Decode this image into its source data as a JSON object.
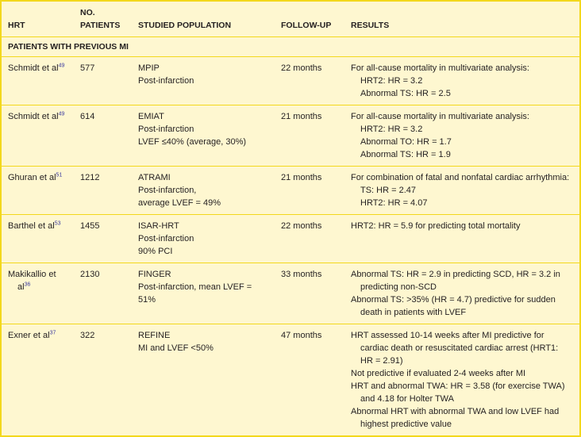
{
  "headers": {
    "hrt": "HRT",
    "patients_line1": "NO.",
    "patients_line2": "PATIENTS",
    "population": "STUDIED POPULATION",
    "followup": "FOLLOW-UP",
    "results": "RESULTS"
  },
  "section": "PATIENTS WITH PREVIOUS MI",
  "rows": [
    {
      "author": "Schmidt et al",
      "ref": "49",
      "patients": "577",
      "population": [
        "MPIP",
        "Post-infarction"
      ],
      "followup": "22 months",
      "results": [
        {
          "t": "For all-cause mortality in multivariate analysis:",
          "indent": false
        },
        {
          "t": "HRT2: HR = 3.2",
          "indent": true
        },
        {
          "t": "Abnormal TS: HR = 2.5",
          "indent": true
        }
      ]
    },
    {
      "author": "Schmidt et al",
      "ref": "49",
      "patients": "614",
      "population": [
        "EMIAT",
        "Post-infarction",
        "LVEF ≤40% (average, 30%)"
      ],
      "followup": "21 months",
      "results": [
        {
          "t": "For all-cause mortality in multivariate analysis:",
          "indent": false
        },
        {
          "t": "HRT2: HR = 3.2",
          "indent": true
        },
        {
          "t": "Abnormal TO: HR = 1.7",
          "indent": true
        },
        {
          "t": "Abnormal TS: HR = 1.9",
          "indent": true
        }
      ]
    },
    {
      "author": "Ghuran et al",
      "ref": "51",
      "patients": "1212",
      "population": [
        "ATRAMI",
        "Post-infarction,",
        "average LVEF = 49%"
      ],
      "followup": "21 months",
      "results": [
        {
          "t": "For combination of fatal and nonfatal cardiac arrhythmia:",
          "indent": false
        },
        {
          "t": "TS: HR = 2.47",
          "indent": true
        },
        {
          "t": "HRT2: HR = 4.07",
          "indent": true
        }
      ]
    },
    {
      "author": "Barthel et al",
      "ref": "53",
      "patients": "1455",
      "population": [
        "ISAR-HRT",
        "Post-infarction",
        "90% PCI"
      ],
      "followup": "22 months",
      "results": [
        {
          "t": "HRT2: HR = 5.9 for predicting total mortality",
          "indent": false
        }
      ]
    },
    {
      "author": "Makikallio et al",
      "ref": "36",
      "patients": "2130",
      "population": [
        "FINGER",
        "Post-infarction, mean LVEF = 51%"
      ],
      "followup": "33 months",
      "results": [
        {
          "t": "Abnormal TS: HR = 2.9 in predicting SCD, HR = 3.2 in predicting non-SCD",
          "indent": false
        },
        {
          "t": "Abnormal TS: >35% (HR = 4.7) predictive for sudden death in patients with LVEF",
          "indent": false
        }
      ]
    },
    {
      "author": "Exner et al",
      "ref": "37",
      "patients": "322",
      "population": [
        "REFINE",
        "MI and LVEF <50%"
      ],
      "followup": "47 months",
      "results": [
        {
          "t": "HRT assessed 10-14 weeks after MI predictive for cardiac death or resuscitated cardiac arrest (HRT1: HR = 2.91)",
          "indent": false
        },
        {
          "t": "Not predictive if evaluated 2-4 weeks after MI",
          "indent": false
        },
        {
          "t": "HRT and abnormal TWA: HR = 3.58 (for exercise TWA) and 4.18 for Holter TWA",
          "indent": false
        },
        {
          "t": "Abnormal HRT with abnormal TWA and low LVEF had highest predictive value",
          "indent": false
        }
      ]
    }
  ]
}
